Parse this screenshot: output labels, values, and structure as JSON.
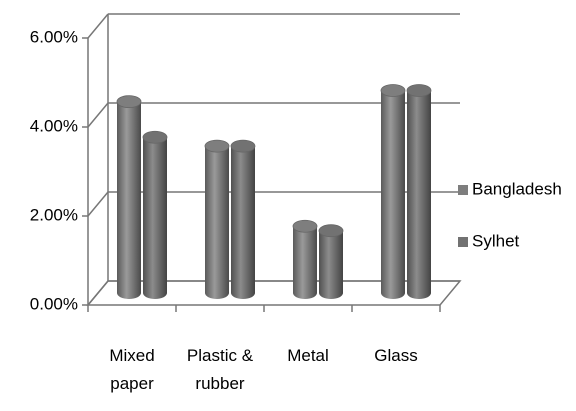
{
  "chart_data": {
    "type": "bar",
    "categories": [
      "Mixed paper",
      "Plastic & rubber",
      "Metal",
      "Glass"
    ],
    "series": [
      {
        "name": "Bangladesh",
        "color": "#7e7e7e",
        "values": [
          4.3,
          3.3,
          1.5,
          4.55
        ]
      },
      {
        "name": "Sylhet",
        "color": "#727272",
        "values": [
          3.5,
          3.3,
          1.4,
          4.55
        ]
      }
    ],
    "ylim": [
      0,
      6
    ],
    "yticks": [
      {
        "value": 0,
        "label": "0.00%"
      },
      {
        "value": 2,
        "label": "2.00%"
      },
      {
        "value": 4,
        "label": "4.00%"
      },
      {
        "value": 6,
        "label": "6.00%"
      }
    ],
    "grid": true,
    "legend": "right"
  }
}
